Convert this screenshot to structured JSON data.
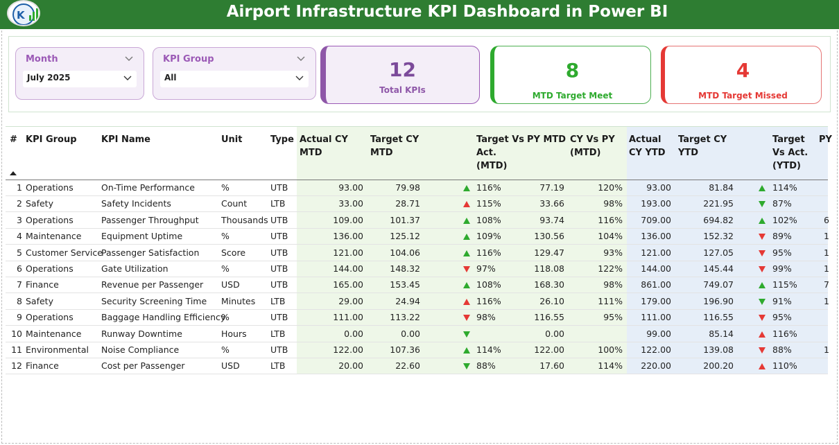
{
  "header": {
    "title": "Airport Infrastructure KPI Dashboard  in Power BI"
  },
  "colors": {
    "header_bg": "#2e7d32",
    "up": "#2eaa2e",
    "down": "#e53935",
    "purple": "#8e57a8",
    "mtd_band": "#eef7e8",
    "ytd_band": "#e6eef8"
  },
  "icons": {
    "logo": "company-logo",
    "chevron": "chevron-down-icon",
    "sort": "sort-ascending-icon",
    "trend_up": "triangle-up-icon",
    "trend_down": "triangle-down-icon"
  },
  "slicers": {
    "month": {
      "label": "Month",
      "value": "July 2025"
    },
    "kpi_group": {
      "label": "KPI Group",
      "value": "All"
    }
  },
  "cards": {
    "total": {
      "value": "12",
      "label": "Total KPIs"
    },
    "meet": {
      "value": "8",
      "label": "MTD Target Meet"
    },
    "missed": {
      "value": "4",
      "label": "MTD Target Missed"
    }
  },
  "table": {
    "headers": {
      "idx": "#",
      "group": "KPI Group",
      "name": "KPI Name",
      "unit": "Unit",
      "type": "Type",
      "actual_mtd": [
        "Actual CY",
        "MTD"
      ],
      "target_mtd": [
        "Target CY",
        "MTD"
      ],
      "tva_mtd": [
        "Target Vs",
        "Act.",
        "(MTD)"
      ],
      "py_mtd": "PY MTD",
      "cyvspy_mtd": [
        "CY Vs PY",
        "(MTD)"
      ],
      "actual_ytd": [
        "Actual",
        "CY YTD"
      ],
      "target_ytd": [
        "Target CY",
        "YTD"
      ],
      "tva_ytd": [
        "Target",
        "Vs Act.",
        "(YTD)"
      ],
      "py_ytd": "PY"
    },
    "rows": [
      {
        "idx": "1",
        "group": "Operations",
        "name": "On-Time Performance",
        "unit": "%",
        "type": "UTB",
        "actual_mtd": "93.00",
        "target_mtd": "79.98",
        "mtd_trend": "up",
        "mtd_color": "green",
        "tva_mtd": "116%",
        "py_mtd": "77.19",
        "cyvspy": "120%",
        "actual_ytd": "93.00",
        "target_ytd": "81.84",
        "ytd_trend": "up",
        "ytd_color": "green",
        "tva_ytd": "114%",
        "py_ytd": ""
      },
      {
        "idx": "2",
        "group": "Safety",
        "name": "Safety Incidents",
        "unit": "Count",
        "type": "LTB",
        "actual_mtd": "33.00",
        "target_mtd": "28.71",
        "mtd_trend": "up",
        "mtd_color": "red",
        "tva_mtd": "115%",
        "py_mtd": "33.66",
        "cyvspy": "98%",
        "actual_ytd": "193.00",
        "target_ytd": "221.95",
        "ytd_trend": "down",
        "ytd_color": "green",
        "tva_ytd": "87%",
        "py_ytd": ""
      },
      {
        "idx": "3",
        "group": "Operations",
        "name": "Passenger Throughput",
        "unit": "Thousands",
        "type": "UTB",
        "actual_mtd": "109.00",
        "target_mtd": "101.37",
        "mtd_trend": "up",
        "mtd_color": "green",
        "tva_mtd": "108%",
        "py_mtd": "93.74",
        "cyvspy": "116%",
        "actual_ytd": "709.00",
        "target_ytd": "694.82",
        "ytd_trend": "up",
        "ytd_color": "green",
        "tva_ytd": "102%",
        "py_ytd": "6"
      },
      {
        "idx": "4",
        "group": "Maintenance",
        "name": "Equipment Uptime",
        "unit": "%",
        "type": "UTB",
        "actual_mtd": "136.00",
        "target_mtd": "125.12",
        "mtd_trend": "up",
        "mtd_color": "green",
        "tva_mtd": "109%",
        "py_mtd": "130.56",
        "cyvspy": "104%",
        "actual_ytd": "136.00",
        "target_ytd": "152.32",
        "ytd_trend": "down",
        "ytd_color": "red",
        "tva_ytd": "89%",
        "py_ytd": "1"
      },
      {
        "idx": "5",
        "group": "Customer Service",
        "name": "Passenger Satisfaction",
        "unit": "Score",
        "type": "UTB",
        "actual_mtd": "121.00",
        "target_mtd": "104.06",
        "mtd_trend": "up",
        "mtd_color": "green",
        "tva_mtd": "116%",
        "py_mtd": "129.47",
        "cyvspy": "93%",
        "actual_ytd": "121.00",
        "target_ytd": "127.05",
        "ytd_trend": "down",
        "ytd_color": "red",
        "tva_ytd": "95%",
        "py_ytd": "1"
      },
      {
        "idx": "6",
        "group": "Operations",
        "name": "Gate Utilization",
        "unit": "%",
        "type": "UTB",
        "actual_mtd": "144.00",
        "target_mtd": "148.32",
        "mtd_trend": "down",
        "mtd_color": "red",
        "tva_mtd": "97%",
        "py_mtd": "118.08",
        "cyvspy": "122%",
        "actual_ytd": "144.00",
        "target_ytd": "145.44",
        "ytd_trend": "down",
        "ytd_color": "red",
        "tva_ytd": "99%",
        "py_ytd": "1"
      },
      {
        "idx": "7",
        "group": "Finance",
        "name": "Revenue per Passenger",
        "unit": "USD",
        "type": "UTB",
        "actual_mtd": "165.00",
        "target_mtd": "153.45",
        "mtd_trend": "up",
        "mtd_color": "green",
        "tva_mtd": "108%",
        "py_mtd": "168.30",
        "cyvspy": "98%",
        "actual_ytd": "861.00",
        "target_ytd": "749.07",
        "ytd_trend": "up",
        "ytd_color": "green",
        "tva_ytd": "115%",
        "py_ytd": "7"
      },
      {
        "idx": "8",
        "group": "Safety",
        "name": "Security Screening Time",
        "unit": "Minutes",
        "type": "LTB",
        "actual_mtd": "29.00",
        "target_mtd": "24.94",
        "mtd_trend": "up",
        "mtd_color": "red",
        "tva_mtd": "116%",
        "py_mtd": "26.10",
        "cyvspy": "111%",
        "actual_ytd": "179.00",
        "target_ytd": "196.90",
        "ytd_trend": "down",
        "ytd_color": "green",
        "tva_ytd": "91%",
        "py_ytd": "1"
      },
      {
        "idx": "9",
        "group": "Operations",
        "name": "Baggage Handling Efficiency",
        "unit": "%",
        "type": "UTB",
        "actual_mtd": "111.00",
        "target_mtd": "113.22",
        "mtd_trend": "down",
        "mtd_color": "red",
        "tva_mtd": "98%",
        "py_mtd": "116.55",
        "cyvspy": "95%",
        "actual_ytd": "111.00",
        "target_ytd": "116.55",
        "ytd_trend": "down",
        "ytd_color": "red",
        "tva_ytd": "95%",
        "py_ytd": ""
      },
      {
        "idx": "10",
        "group": "Maintenance",
        "name": "Runway Downtime",
        "unit": "Hours",
        "type": "LTB",
        "actual_mtd": "0.00",
        "target_mtd": "0.00",
        "mtd_trend": "down",
        "mtd_color": "green",
        "tva_mtd": "",
        "py_mtd": "0.00",
        "cyvspy": "",
        "actual_ytd": "99.00",
        "target_ytd": "85.14",
        "ytd_trend": "up",
        "ytd_color": "red",
        "tva_ytd": "116%",
        "py_ytd": ""
      },
      {
        "idx": "11",
        "group": "Environmental",
        "name": "Noise Compliance",
        "unit": "%",
        "type": "UTB",
        "actual_mtd": "122.00",
        "target_mtd": "107.36",
        "mtd_trend": "up",
        "mtd_color": "green",
        "tva_mtd": "114%",
        "py_mtd": "122.00",
        "cyvspy": "100%",
        "actual_ytd": "122.00",
        "target_ytd": "139.08",
        "ytd_trend": "down",
        "ytd_color": "red",
        "tva_ytd": "88%",
        "py_ytd": "1"
      },
      {
        "idx": "12",
        "group": "Finance",
        "name": "Cost per Passenger",
        "unit": "USD",
        "type": "LTB",
        "actual_mtd": "20.00",
        "target_mtd": "22.60",
        "mtd_trend": "down",
        "mtd_color": "green",
        "tva_mtd": "88%",
        "py_mtd": "17.60",
        "cyvspy": "114%",
        "actual_ytd": "220.00",
        "target_ytd": "200.20",
        "ytd_trend": "up",
        "ytd_color": "red",
        "tva_ytd": "110%",
        "py_ytd": ""
      }
    ]
  }
}
